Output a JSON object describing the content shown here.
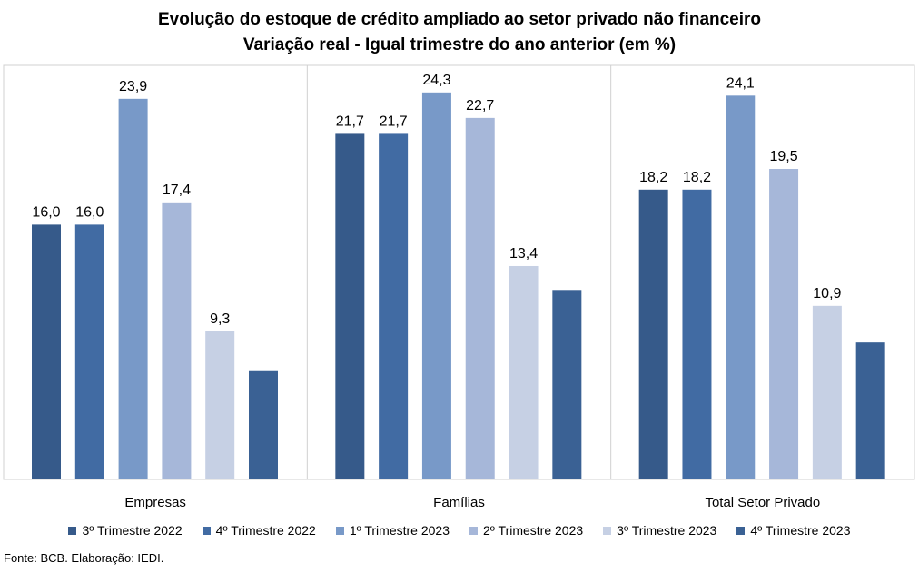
{
  "title_line1": "Evolução do estoque de crédito ampliado ao setor privado não financeiro",
  "title_line2": "Variação real - Igual trimestre do ano anterior (em %)",
  "source": "Fonte: BCB. Elaboração: IEDI.",
  "colors": [
    "#365a8a",
    "#416ba3",
    "#7899c8",
    "#a6b7d9",
    "#c6d0e4",
    "#3a6194"
  ],
  "chart_data": {
    "type": "bar",
    "categories": [
      "Empresas",
      "Famílias",
      "Total Setor Privado"
    ],
    "series": [
      {
        "name": "3º Trimestre 2022",
        "values": [
          16.0,
          21.7,
          18.2
        ],
        "labels": [
          "16,0",
          "21,7",
          "18,2"
        ]
      },
      {
        "name": "4º Trimestre 2022",
        "values": [
          16.0,
          21.7,
          18.2
        ],
        "labels": [
          "16,0",
          "21,7",
          "18,2"
        ]
      },
      {
        "name": "1º Trimestre 2023",
        "values": [
          23.9,
          24.3,
          24.1
        ],
        "labels": [
          "23,9",
          "24,3",
          "24,1"
        ]
      },
      {
        "name": "2º Trimestre 2023",
        "values": [
          17.4,
          22.7,
          19.5
        ],
        "labels": [
          "17,4",
          "22,7",
          "19,5"
        ]
      },
      {
        "name": "3º Trimestre 2023",
        "values": [
          9.3,
          13.4,
          10.9
        ],
        "labels": [
          "9,3",
          "13,4",
          "10,9"
        ]
      },
      {
        "name": "4º Trimestre 2023",
        "values": [
          6.8,
          11.9,
          8.6
        ],
        "labels": [
          "",
          "",
          ""
        ]
      }
    ],
    "ylim": [
      0,
      26
    ],
    "legend_position": "bottom",
    "grid": false
  }
}
